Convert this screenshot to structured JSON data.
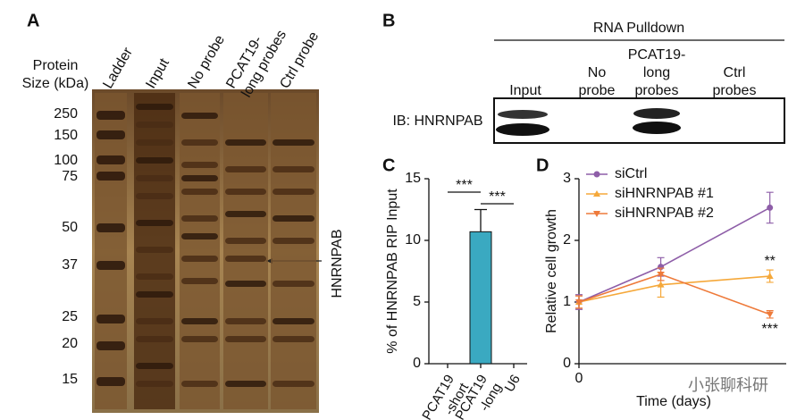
{
  "panel_a": {
    "label": "A",
    "size_title": "Protein\nSize (kDa)",
    "lanes": [
      "Ladder",
      "Input",
      "No probe",
      "PCAT19-\nlong probes",
      "Ctrl probe"
    ],
    "markers": [
      250,
      150,
      100,
      75,
      50,
      37,
      25,
      20,
      15
    ],
    "arrow_label": "HNRNPAB"
  },
  "panel_b": {
    "label": "B",
    "title": "RNA Pulldown",
    "columns": [
      "Input",
      "No\nprobe",
      "PCAT19-\nlong\nprobes",
      "Ctrl\nprobes"
    ],
    "row_label": "IB: HNRNPAB"
  },
  "chart_data": [
    {
      "type": "bar",
      "label": "C",
      "ylabel": "% of HNRNPAB RIP Input",
      "categories": [
        "PCAT19\n-short",
        "PCAT19\n-long",
        "U6"
      ],
      "values": [
        0,
        10.7,
        0
      ],
      "errors": [
        0,
        1.8,
        0
      ],
      "color": "#3aa9c1",
      "ylim": [
        0,
        15
      ],
      "yticks": [
        0,
        5,
        10,
        15
      ],
      "annotations": [
        "***",
        "***"
      ]
    },
    {
      "type": "line",
      "label": "D",
      "xlabel": "Time (days)",
      "ylabel": "Relative cell growth",
      "x": [
        0,
        3,
        7
      ],
      "xlim": [
        0,
        7.6
      ],
      "xticks": [
        0
      ],
      "ylim": [
        0,
        3
      ],
      "yticks": [
        0,
        1,
        2,
        3
      ],
      "legend": "upper left",
      "series": [
        {
          "name": "siCtrl",
          "color": "#8e5ea8",
          "marker": "circle",
          "values": [
            1,
            1.57,
            2.53
          ],
          "errors": [
            0.12,
            0.15,
            0.25
          ]
        },
        {
          "name": "siHNRNPAB #1",
          "color": "#f5a83a",
          "marker": "triangle-up",
          "values": [
            1,
            1.28,
            1.42
          ],
          "errors": [
            0.1,
            0.2,
            0.1
          ],
          "annotation": "**"
        },
        {
          "name": "siHNRNPAB #2",
          "color": "#ee7a3a",
          "marker": "triangle-down",
          "values": [
            1,
            1.45,
            0.8
          ],
          "errors": [
            0.1,
            0.1,
            0.06
          ],
          "annotation": "***"
        }
      ]
    }
  ],
  "watermark": "小张聊科研"
}
